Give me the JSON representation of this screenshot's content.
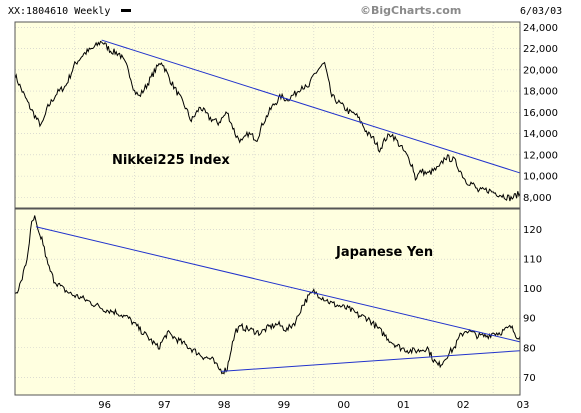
{
  "header": {
    "symbol_text": "XX:1804610 Weekly",
    "brand": "©BigCharts.com",
    "date": "6/03/03"
  },
  "chart_data": [
    {
      "type": "line",
      "series": [
        {
          "name": "Nikkei225 Index",
          "values_source": "weekly_close"
        }
      ],
      "x_ticks": [
        "96",
        "97",
        "98",
        "99",
        "00",
        "01",
        "02",
        "03"
      ],
      "y_ticks": [
        "8,000",
        "10,000",
        "12,000",
        "14,000",
        "16,000",
        "18,000",
        "20,000",
        "22,000",
        "24,000"
      ],
      "ylim": [
        7000,
        24500
      ],
      "xlim": [
        1995.0,
        2003.45
      ],
      "annotation": "Nikkei225 Index",
      "keypoints": [
        [
          1995.0,
          19500
        ],
        [
          1995.12,
          18000
        ],
        [
          1995.25,
          16500
        ],
        [
          1995.4,
          15000
        ],
        [
          1995.45,
          14800
        ],
        [
          1995.55,
          16500
        ],
        [
          1995.7,
          17800
        ],
        [
          1995.85,
          18500
        ],
        [
          1996.0,
          20500
        ],
        [
          1996.15,
          21500
        ],
        [
          1996.3,
          22000
        ],
        [
          1996.45,
          22700
        ],
        [
          1996.6,
          21800
        ],
        [
          1996.75,
          21500
        ],
        [
          1996.9,
          20000
        ],
        [
          1997.0,
          18000
        ],
        [
          1997.08,
          17500
        ],
        [
          1997.2,
          18500
        ],
        [
          1997.35,
          20000
        ],
        [
          1997.45,
          20800
        ],
        [
          1997.6,
          19000
        ],
        [
          1997.75,
          17500
        ],
        [
          1997.85,
          16500
        ],
        [
          1997.95,
          15200
        ],
        [
          1998.1,
          16500
        ],
        [
          1998.25,
          15500
        ],
        [
          1998.4,
          15000
        ],
        [
          1998.55,
          16000
        ],
        [
          1998.7,
          13800
        ],
        [
          1998.8,
          13200
        ],
        [
          1998.9,
          14000
        ],
        [
          1999.05,
          13500
        ],
        [
          1999.15,
          15000
        ],
        [
          1999.3,
          16500
        ],
        [
          1999.45,
          17500
        ],
        [
          1999.55,
          17200
        ],
        [
          1999.7,
          17800
        ],
        [
          1999.8,
          18500
        ],
        [
          1999.9,
          18200
        ],
        [
          2000.0,
          19500
        ],
        [
          2000.1,
          20200
        ],
        [
          2000.18,
          20600
        ],
        [
          2000.22,
          19500
        ],
        [
          2000.3,
          17500
        ],
        [
          2000.4,
          17000
        ],
        [
          2000.5,
          16500
        ],
        [
          2000.6,
          16000
        ],
        [
          2000.7,
          15800
        ],
        [
          2000.8,
          15000
        ],
        [
          2000.9,
          14000
        ],
        [
          2001.0,
          13500
        ],
        [
          2001.1,
          12500
        ],
        [
          2001.2,
          13500
        ],
        [
          2001.3,
          14000
        ],
        [
          2001.4,
          13200
        ],
        [
          2001.55,
          12000
        ],
        [
          2001.65,
          11000
        ],
        [
          2001.7,
          9800
        ],
        [
          2001.8,
          10500
        ],
        [
          2001.9,
          10200
        ],
        [
          2002.0,
          10500
        ],
        [
          2002.1,
          10800
        ],
        [
          2002.2,
          11800
        ],
        [
          2002.35,
          11500
        ],
        [
          2002.45,
          10500
        ],
        [
          2002.55,
          9500
        ],
        [
          2002.65,
          9300
        ],
        [
          2002.75,
          8600
        ],
        [
          2002.9,
          8700
        ],
        [
          2003.0,
          8500
        ],
        [
          2003.15,
          8200
        ],
        [
          2003.3,
          7900
        ],
        [
          2003.45,
          8400
        ]
      ],
      "trendline": [
        [
          1996.45,
          22800
        ],
        [
          2003.45,
          10300
        ]
      ]
    },
    {
      "type": "line",
      "series": [
        {
          "name": "Japanese Yen",
          "values_source": "weekly_close"
        }
      ],
      "x_ticks": [
        "96",
        "97",
        "98",
        "99",
        "00",
        "01",
        "02",
        "03"
      ],
      "y_ticks": [
        "70",
        "80",
        "90",
        "100",
        "110",
        "120"
      ],
      "ylim": [
        64,
        127
      ],
      "xlim": [
        1995.0,
        2003.45
      ],
      "annotation": "Japanese Yen",
      "keypoints": [
        [
          1995.0,
          98
        ],
        [
          1995.1,
          102
        ],
        [
          1995.2,
          110
        ],
        [
          1995.28,
          122
        ],
        [
          1995.33,
          124
        ],
        [
          1995.4,
          118
        ],
        [
          1995.45,
          117
        ],
        [
          1995.55,
          108
        ],
        [
          1995.65,
          103
        ],
        [
          1995.8,
          100
        ],
        [
          1995.95,
          98
        ],
        [
          1996.1,
          97
        ],
        [
          1996.3,
          95
        ],
        [
          1996.5,
          93
        ],
        [
          1996.7,
          92
        ],
        [
          1996.9,
          90
        ],
        [
          1997.0,
          88
        ],
        [
          1997.15,
          85
        ],
        [
          1997.3,
          82
        ],
        [
          1997.4,
          80
        ],
        [
          1997.55,
          85
        ],
        [
          1997.7,
          83
        ],
        [
          1997.85,
          81
        ],
        [
          1998.0,
          79
        ],
        [
          1998.15,
          77
        ],
        [
          1998.3,
          76
        ],
        [
          1998.4,
          73
        ],
        [
          1998.48,
          72
        ],
        [
          1998.55,
          73
        ],
        [
          1998.62,
          80
        ],
        [
          1998.7,
          86
        ],
        [
          1998.8,
          87
        ],
        [
          1998.95,
          86
        ],
        [
          1999.1,
          85
        ],
        [
          1999.25,
          87
        ],
        [
          1999.4,
          88
        ],
        [
          1999.55,
          86
        ],
        [
          1999.7,
          89
        ],
        [
          1999.8,
          94
        ],
        [
          1999.9,
          97
        ],
        [
          2000.0,
          99
        ],
        [
          2000.15,
          97
        ],
        [
          2000.3,
          95
        ],
        [
          2000.45,
          94
        ],
        [
          2000.6,
          93
        ],
        [
          2000.75,
          91
        ],
        [
          2000.9,
          90
        ],
        [
          2001.0,
          88
        ],
        [
          2001.15,
          85
        ],
        [
          2001.3,
          82
        ],
        [
          2001.45,
          80
        ],
        [
          2001.6,
          79
        ],
        [
          2001.75,
          79
        ],
        [
          2001.9,
          80
        ],
        [
          2002.0,
          76
        ],
        [
          2002.08,
          74
        ],
        [
          2002.15,
          75
        ],
        [
          2002.25,
          78
        ],
        [
          2002.35,
          80
        ],
        [
          2002.45,
          84
        ],
        [
          2002.55,
          86
        ],
        [
          2002.65,
          85
        ],
        [
          2002.75,
          84
        ],
        [
          2002.9,
          84
        ],
        [
          2003.0,
          85
        ],
        [
          2003.1,
          85
        ],
        [
          2003.2,
          86
        ],
        [
          2003.3,
          87
        ],
        [
          2003.4,
          84
        ],
        [
          2003.45,
          84
        ]
      ],
      "trendlines": [
        [
          [
            1995.35,
            121
          ],
          [
            2003.45,
            82
          ]
        ],
        [
          [
            1998.45,
            72
          ],
          [
            2003.45,
            79
          ]
        ]
      ]
    }
  ],
  "colors": {
    "plot_bg": "#ffffe0",
    "frame_bg": "#ffffff",
    "trend": "#2233cc",
    "series": "#000000",
    "border": "#555555",
    "divider": "#555555"
  }
}
